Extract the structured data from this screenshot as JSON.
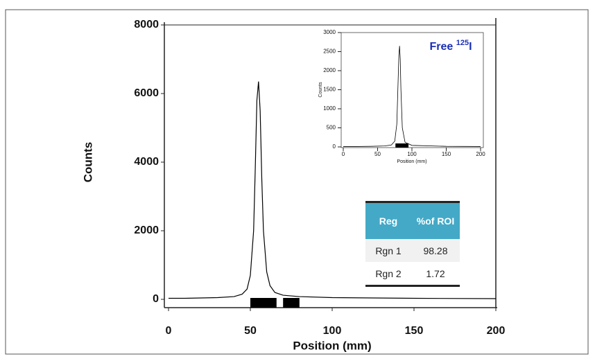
{
  "chart_data": [
    {
      "type": "line",
      "x_label": "Position (mm)",
      "y_label": "Counts",
      "x": [
        0,
        10,
        20,
        30,
        40,
        45,
        48,
        50,
        52,
        53,
        54,
        55,
        56,
        57,
        58,
        60,
        62,
        65,
        70,
        80,
        100,
        150,
        200
      ],
      "series": [
        {
          "color": "#000000",
          "values": [
            30,
            30,
            40,
            50,
            80,
            150,
            300,
            700,
            2000,
            3800,
            5800,
            6350,
            5500,
            3500,
            2000,
            800,
            400,
            200,
            120,
            80,
            50,
            30,
            20
          ]
        }
      ],
      "regions": [
        [
          50,
          66
        ],
        [
          70,
          80
        ]
      ],
      "xlim": [
        0,
        200
      ],
      "ylim": [
        0,
        8000
      ],
      "xticks": [
        0,
        50,
        100,
        150,
        200
      ],
      "yticks": [
        0,
        2000,
        4000,
        6000,
        8000
      ]
    },
    {
      "type": "line",
      "title": "Free ",
      "title_sup": "125",
      "title_suffix": "I",
      "x_label": "Position (mm)",
      "y_label": "Counts",
      "x": [
        0,
        20,
        40,
        60,
        70,
        75,
        78,
        80,
        81,
        82,
        83,
        84,
        86,
        90,
        100,
        150,
        200
      ],
      "series": [
        {
          "color": "#000000",
          "values": [
            10,
            10,
            15,
            25,
            50,
            150,
            600,
            1800,
            2400,
            2650,
            2300,
            1500,
            500,
            120,
            40,
            15,
            10
          ]
        }
      ],
      "regions": [
        [
          76,
          95
        ]
      ],
      "xlim": [
        0,
        200
      ],
      "ylim": [
        0,
        3000
      ],
      "xticks": [
        0,
        50,
        100,
        150,
        200
      ],
      "yticks": [
        0,
        500,
        1000,
        1500,
        2000,
        2500,
        3000
      ]
    }
  ],
  "table": {
    "header": [
      "Reg",
      "%of ROI"
    ],
    "rows": [
      [
        "Rgn 1",
        "98.28"
      ],
      [
        "Rgn 2",
        "1.72"
      ]
    ]
  }
}
